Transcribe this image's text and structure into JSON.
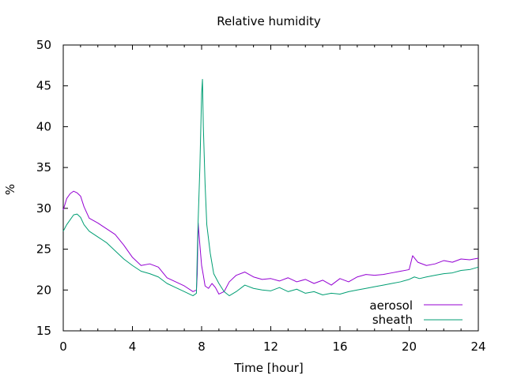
{
  "chart_data": {
    "type": "line",
    "title": "Relative humidity",
    "xlabel": "Time [hour]",
    "ylabel": "%",
    "xlim": [
      0,
      24
    ],
    "ylim": [
      15,
      50
    ],
    "x_ticks": [
      0,
      4,
      8,
      12,
      16,
      20,
      24
    ],
    "y_ticks": [
      15,
      20,
      25,
      30,
      35,
      40,
      45,
      50
    ],
    "grid": false,
    "legend_position": "bottom-right",
    "colors": {
      "aerosol": "#9400d3",
      "sheath": "#009e73"
    },
    "series": [
      {
        "name": "aerosol",
        "x": [
          0,
          0.2,
          0.4,
          0.6,
          0.8,
          1.0,
          1.2,
          1.5,
          2.0,
          2.5,
          3.0,
          3.5,
          4.0,
          4.5,
          5.0,
          5.5,
          6.0,
          6.5,
          7.0,
          7.5,
          7.7,
          7.75,
          7.8,
          7.9,
          8.0,
          8.1,
          8.2,
          8.4,
          8.6,
          8.8,
          9.0,
          9.3,
          9.6,
          10.0,
          10.5,
          11.0,
          11.5,
          12.0,
          12.5,
          13.0,
          13.5,
          14.0,
          14.5,
          15.0,
          15.5,
          16.0,
          16.5,
          17.0,
          17.5,
          18.0,
          18.5,
          19.0,
          19.5,
          20.0,
          20.2,
          20.5,
          21.0,
          21.5,
          22.0,
          22.5,
          23.0,
          23.5,
          24.0
        ],
        "y": [
          29.8,
          31.2,
          31.8,
          32.1,
          31.9,
          31.5,
          30.2,
          28.8,
          28.2,
          27.5,
          26.8,
          25.5,
          24.0,
          23.0,
          23.2,
          22.8,
          21.5,
          21.0,
          20.5,
          19.8,
          20.0,
          22.0,
          28.2,
          25.5,
          23.0,
          21.8,
          20.5,
          20.2,
          20.8,
          20.3,
          19.5,
          19.8,
          21.0,
          21.8,
          22.2,
          21.6,
          21.3,
          21.4,
          21.1,
          21.5,
          21.0,
          21.3,
          20.8,
          21.2,
          20.6,
          21.4,
          21.0,
          21.6,
          21.9,
          21.8,
          21.9,
          22.1,
          22.3,
          22.5,
          24.2,
          23.4,
          23.0,
          23.2,
          23.6,
          23.4,
          23.8,
          23.7,
          23.9
        ]
      },
      {
        "name": "sheath",
        "x": [
          0,
          0.2,
          0.4,
          0.6,
          0.8,
          1.0,
          1.2,
          1.5,
          2.0,
          2.5,
          3.0,
          3.5,
          4.0,
          4.5,
          5.0,
          5.5,
          6.0,
          6.5,
          7.0,
          7.5,
          7.7,
          7.75,
          7.8,
          7.9,
          8.0,
          8.05,
          8.1,
          8.2,
          8.3,
          8.5,
          8.7,
          9.0,
          9.3,
          9.6,
          10.0,
          10.5,
          11.0,
          11.5,
          12.0,
          12.5,
          13.0,
          13.5,
          14.0,
          14.5,
          15.0,
          15.5,
          16.0,
          16.5,
          17.0,
          17.5,
          18.0,
          18.5,
          19.0,
          19.5,
          20.0,
          20.3,
          20.6,
          21.0,
          21.5,
          22.0,
          22.5,
          23.0,
          23.5,
          24.0
        ],
        "y": [
          27.2,
          28.0,
          28.6,
          29.2,
          29.3,
          28.9,
          28.0,
          27.2,
          26.5,
          25.8,
          24.8,
          23.8,
          23.0,
          22.3,
          22.0,
          21.6,
          20.8,
          20.3,
          19.8,
          19.3,
          19.6,
          24.5,
          28.5,
          35.0,
          44.0,
          45.8,
          40.0,
          33.0,
          28.0,
          24.5,
          22.0,
          20.8,
          19.8,
          19.3,
          19.8,
          20.6,
          20.2,
          20.0,
          19.9,
          20.3,
          19.8,
          20.1,
          19.6,
          19.8,
          19.4,
          19.6,
          19.5,
          19.8,
          20.0,
          20.2,
          20.4,
          20.6,
          20.8,
          21.0,
          21.3,
          21.6,
          21.4,
          21.6,
          21.8,
          22.0,
          22.1,
          22.4,
          22.5,
          22.8
        ]
      }
    ]
  }
}
